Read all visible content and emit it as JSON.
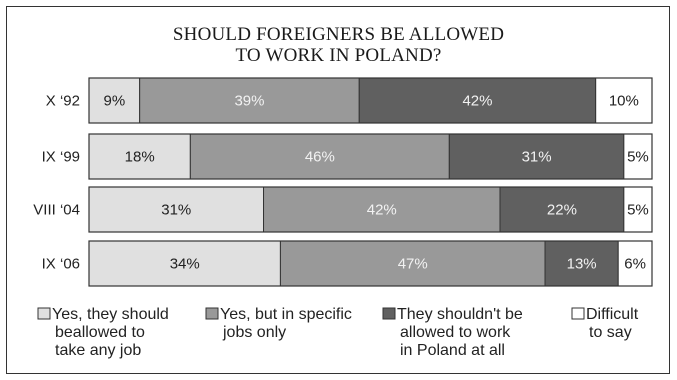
{
  "chart_data": {
    "type": "bar",
    "orientation": "horizontal",
    "stacked": true,
    "title": "SHOULD FOREIGNERS BE ALLOWED\nTO WORK IN POLAND?",
    "title_lines": [
      "SHOULD FOREIGNERS BE ALLOWED",
      "TO WORK IN POLAND?"
    ],
    "categories": [
      "X ‘92",
      "IX ‘99",
      "VIII ‘04",
      "IX ‘06"
    ],
    "series": [
      {
        "name": "Yes, they should beallowed to take any job",
        "legend_lines": [
          "Yes, they should",
          "beallowed to",
          "take any job"
        ],
        "color": "#e0e0e0",
        "text_color": "#222222",
        "values": [
          9,
          18,
          31,
          34
        ]
      },
      {
        "name": "Yes, but in specific jobs only",
        "legend_lines": [
          "Yes, but in specific",
          "jobs only"
        ],
        "color": "#999999",
        "text_color": "#f2f2f2",
        "values": [
          39,
          46,
          42,
          47
        ]
      },
      {
        "name": "They shouldn't be allowed to work in Poland at all",
        "legend_lines": [
          "They shouldn't be",
          "allowed to work",
          "in Poland at all"
        ],
        "color": "#606060",
        "text_color": "#f2f2f2",
        "values": [
          42,
          31,
          22,
          13
        ]
      },
      {
        "name": "Difficult to say",
        "legend_lines": [
          "Difficult",
          "to say"
        ],
        "color": "#ffffff",
        "text_color": "#222222",
        "values": [
          10,
          5,
          5,
          6
        ]
      }
    ],
    "unit": "%",
    "legend_position": "bottom",
    "grid": false
  }
}
